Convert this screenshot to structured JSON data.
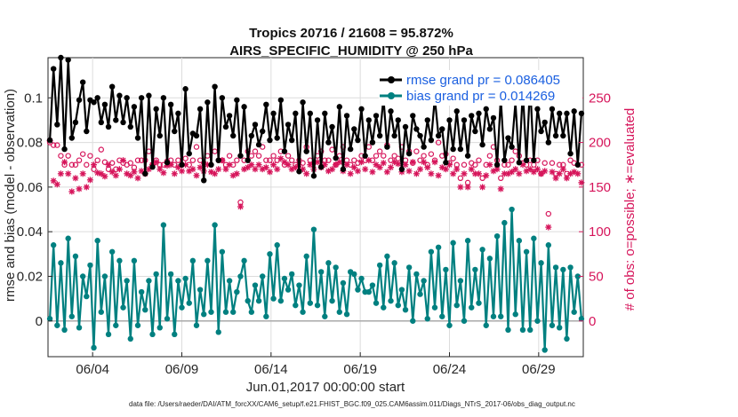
{
  "chart_data": {
    "type": "line",
    "title_line1": "Tropics 20716 / 21608 = 95.872%",
    "title_line2": "AIRS_SPECIFIC_HUMIDITY @ 250 hPa",
    "xlabel": "Jun.01,2017 00:00:00 start",
    "ylabel_left": "rmse and bias (model - observation)",
    "ylabel_right": "# of obs: o=possible; ∗=evaluated",
    "footer": "data file: /Users/raeder/DAI/ATM_forcXX/CAM6_setup/f.e21.FHIST_BGC.f09_025.CAM6assim.011/Diags_NTrS_2017-06/obs_diag_output.nc",
    "x_range_days": [
      0.5,
      30.5
    ],
    "ylim_left": [
      -0.016,
      0.118
    ],
    "ylim_right": [
      -40,
      295
    ],
    "x_ticks": [
      {
        "day": 3,
        "label": "06/04"
      },
      {
        "day": 8,
        "label": "06/09"
      },
      {
        "day": 13,
        "label": "06/14"
      },
      {
        "day": 18,
        "label": "06/19"
      },
      {
        "day": 23,
        "label": "06/24"
      },
      {
        "day": 28,
        "label": "06/29"
      }
    ],
    "y_ticks_left": [
      {
        "value": 0,
        "label": "0"
      },
      {
        "value": 0.02,
        "label": "0.02"
      },
      {
        "value": 0.04,
        "label": "0.04"
      },
      {
        "value": 0.06,
        "label": "0.06"
      },
      {
        "value": 0.08,
        "label": "0.08"
      },
      {
        "value": 0.1,
        "label": "0.1"
      }
    ],
    "y_ticks_right": [
      {
        "value": 0,
        "label": "0"
      },
      {
        "value": 50,
        "label": "50"
      },
      {
        "value": 100,
        "label": "100"
      },
      {
        "value": 150,
        "label": "150"
      },
      {
        "value": 200,
        "label": "200"
      },
      {
        "value": 250,
        "label": "250"
      }
    ],
    "series": [
      {
        "name": "rmse grand pr = 0.086405",
        "color": "#000000",
        "marker": "dot",
        "values": [
          0.081,
          0.113,
          0.088,
          0.118,
          0.077,
          0.117,
          0.082,
          0.089,
          0.099,
          0.107,
          0.085,
          0.099,
          0.098,
          0.1,
          0.089,
          0.097,
          0.087,
          0.105,
          0.09,
          0.101,
          0.089,
          0.1,
          0.087,
          0.096,
          0.082,
          0.1,
          0.066,
          0.101,
          0.069,
          0.095,
          0.083,
          0.1,
          0.071,
          0.097,
          0.085,
          0.093,
          0.07,
          0.104,
          0.075,
          0.084,
          0.083,
          0.095,
          0.063,
          0.098,
          0.07,
          0.105,
          0.072,
          0.1,
          0.087,
          0.092,
          0.083,
          0.099,
          0.074,
          0.096,
          0.072,
          0.083,
          0.088,
          0.079,
          0.085,
          0.097,
          0.081,
          0.093,
          0.082,
          0.099,
          0.076,
          0.088,
          0.081,
          0.093,
          0.067,
          0.098,
          0.076,
          0.093,
          0.065,
          0.09,
          0.069,
          0.093,
          0.08,
          0.087,
          0.073,
          0.096,
          0.068,
          0.092,
          0.077,
          0.086,
          0.081,
          0.095,
          0.074,
          0.09,
          0.08,
          0.092,
          0.083,
          0.1,
          0.078,
          0.094,
          0.083,
          0.09,
          0.068,
          0.087,
          0.075,
          0.092,
          0.086,
          0.083,
          0.078,
          0.09,
          0.081,
          0.1,
          0.083,
          0.086,
          0.071,
          0.09,
          0.077,
          0.094,
          0.077,
          0.09,
          0.074,
          0.092,
          0.085,
          0.093,
          0.079,
          0.095,
          0.086,
          0.091,
          0.07,
          0.1,
          0.072,
          0.082,
          0.078,
          0.098,
          0.071,
          0.103,
          0.072,
          0.106,
          0.072,
          0.095,
          0.085,
          0.089,
          0.08,
          0.095,
          0.083,
          0.093,
          0.083,
          0.093,
          0.075,
          0.094,
          0.07,
          0.093
        ]
      },
      {
        "name": "bias grand pr = 0.014269",
        "color": "#008080",
        "marker": "dot",
        "values": [
          0.001,
          0.034,
          -0.002,
          0.026,
          -0.004,
          0.037,
          0.002,
          0.029,
          -0.003,
          0.02,
          0.011,
          0.025,
          -0.012,
          0.036,
          0.004,
          0.02,
          -0.006,
          0.031,
          -0.002,
          0.027,
          0.006,
          0.018,
          -0.008,
          0.027,
          -0.002,
          0.013,
          0.005,
          0.018,
          -0.006,
          0.021,
          -0.003,
          0.043,
          0.001,
          0.021,
          -0.006,
          0.018,
          0.006,
          0.019,
          0.008,
          0.027,
          -0.002,
          0.014,
          0.003,
          0.027,
          0.004,
          0.043,
          -0.005,
          0.031,
          0.004,
          0.018,
          0.004,
          0.013,
          0.02,
          0.027,
          0.009,
          0.004,
          0.016,
          0.009,
          0.02,
          0.002,
          0.03,
          0.01,
          0.034,
          0.009,
          0.019,
          0.014,
          0.021,
          0.007,
          0.016,
          0.004,
          0.029,
          0.008,
          0.041,
          0.007,
          0.022,
          0.002,
          0.026,
          0.009,
          0.024,
          0.004,
          0.017,
          0.003,
          0.022,
          0.021,
          0.014,
          0.019,
          0.013,
          0.013,
          0.016,
          0.008,
          0.025,
          0.006,
          0.029,
          0.009,
          0.026,
          0.007,
          0.014,
          0.005,
          0.024,
          0.0,
          0.021,
          0.012,
          0.018,
          0.001,
          0.031,
          0.006,
          0.033,
          0.002,
          0.023,
          -0.002,
          0.035,
          0.007,
          0.018,
          0.0,
          0.036,
          0.006,
          0.023,
          0.008,
          0.032,
          -0.002,
          0.028,
          0.002,
          0.038,
          0.002,
          0.044,
          -0.004,
          0.05,
          0.003,
          0.036,
          -0.004,
          0.031,
          -0.004,
          0.037,
          0.0,
          0.026,
          -0.013,
          0.034,
          -0.002,
          0.024,
          -0.003,
          0.023,
          -0.008,
          0.024,
          0.004,
          0.02,
          0.001
        ]
      },
      {
        "name": "possible",
        "color": "#D6145A",
        "marker": "o",
        "values": [
          200,
          197,
          197,
          185,
          175,
          185,
          175,
          175,
          180,
          187,
          175,
          185,
          170,
          180,
          192,
          178,
          170,
          177,
          170,
          180,
          177,
          175,
          177,
          172,
          180,
          180,
          180,
          190,
          175,
          180,
          175,
          175,
          179,
          180,
          175,
          180,
          175,
          182,
          175,
          180,
          195,
          180,
          177,
          185,
          175,
          190,
          180,
          180,
          175,
          185,
          175,
          180,
          133,
          180,
          190,
          185,
          190,
          185,
          195,
          180,
          180,
          185,
          180,
          190,
          175,
          185,
          180,
          175,
          180,
          177,
          195,
          180,
          177,
          185,
          190,
          180,
          180,
          192,
          175,
          185,
          195,
          180,
          175,
          180,
          177,
          185,
          180,
          195,
          180,
          185,
          190,
          185,
          197,
          180,
          185,
          182,
          195,
          180,
          190,
          177,
          190,
          180,
          185,
          175,
          187,
          180,
          200,
          185,
          187,
          177,
          182,
          175,
          160,
          175,
          155,
          177,
          175,
          180,
          160,
          175,
          185,
          195,
          180,
          160,
          175,
          175,
          180,
          190,
          185,
          177,
          175,
          180,
          175,
          180,
          165,
          177,
          120,
          177,
          165,
          175,
          175,
          165,
          180,
          177,
          175,
          175
        ]
      },
      {
        "name": "evaluated",
        "color": "#D6145A",
        "marker": "asterisk",
        "values": [
          202,
          157,
          153,
          165,
          178,
          165,
          145,
          160,
          148,
          165,
          150,
          158,
          175,
          166,
          165,
          162,
          175,
          167,
          163,
          170,
          180,
          165,
          163,
          167,
          160,
          168,
          165,
          170,
          175,
          178,
          170,
          166,
          174,
          175,
          165,
          172,
          168,
          175,
          168,
          170,
          163,
          172,
          168,
          175,
          167,
          165,
          170,
          180,
          170,
          175,
          163,
          165,
          128,
          170,
          172,
          175,
          170,
          175,
          170,
          172,
          167,
          175,
          170,
          182,
          178,
          175,
          170,
          172,
          175,
          170,
          165,
          175,
          170,
          178,
          172,
          175,
          168,
          170,
          175,
          178,
          168,
          175,
          165,
          172,
          168,
          178,
          170,
          180,
          167,
          175,
          172,
          177,
          167,
          172,
          178,
          176,
          167,
          175,
          168,
          178,
          165,
          170,
          178,
          172,
          165,
          178,
          163,
          172,
          170,
          175,
          165,
          170,
          150,
          165,
          150,
          170,
          165,
          165,
          150,
          163,
          175,
          168,
          170,
          148,
          165,
          165,
          167,
          170,
          165,
          175,
          168,
          170,
          167,
          170,
          165,
          168,
          105,
          167,
          160,
          165,
          170,
          160,
          165,
          167,
          165,
          155
        ]
      }
    ]
  }
}
